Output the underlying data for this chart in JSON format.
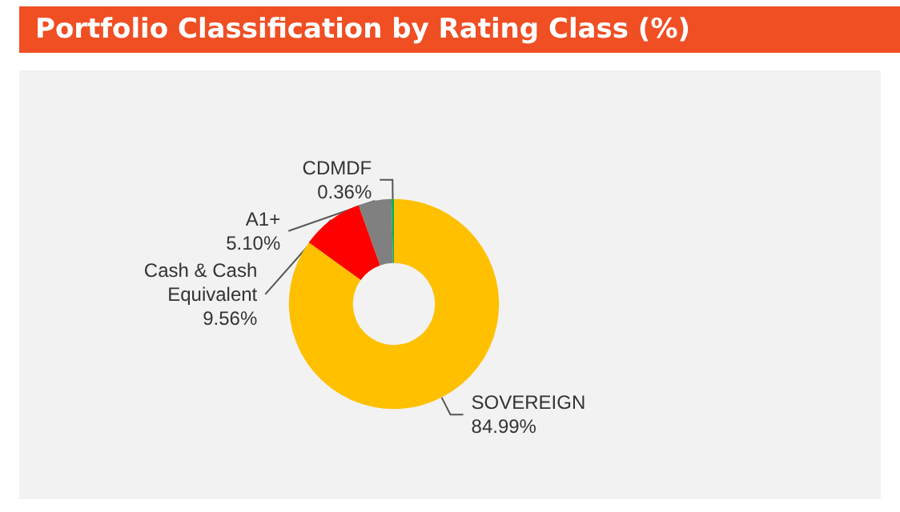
{
  "chart_data": {
    "type": "donut",
    "title": "Portfolio Classification by Rating Class (%)",
    "categories": [
      "SOVEREIGN",
      "Cash & Cash\nEquivalent",
      "A1+",
      "CDMDF"
    ],
    "values": [
      84.99,
      9.56,
      5.1,
      0.36
    ],
    "value_labels": [
      "84.99%",
      "9.56%",
      "5.10%",
      "0.36%"
    ],
    "colors": [
      "#ffc000",
      "#ff0000",
      "#808080",
      "#00b050"
    ],
    "legend": false
  }
}
